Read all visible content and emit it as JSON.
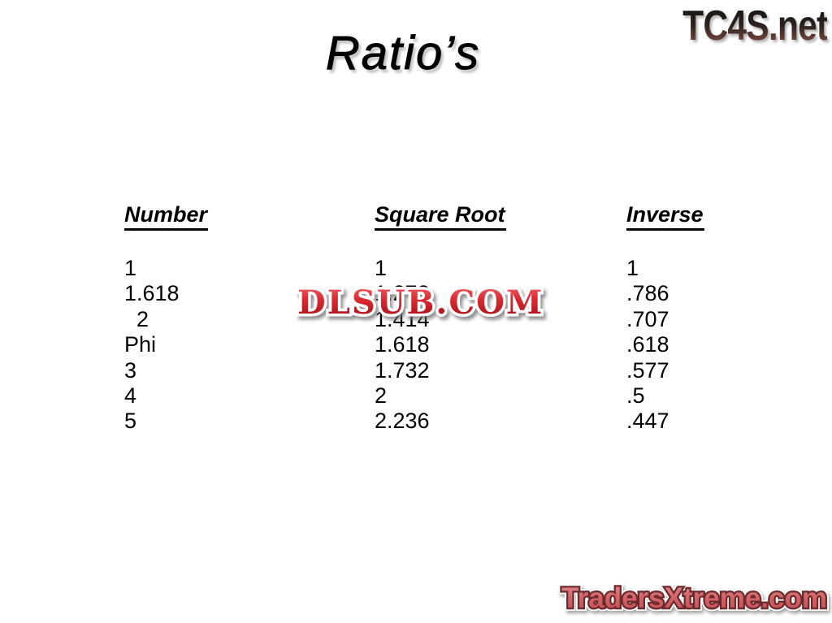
{
  "title": {
    "text": "Ratio’s"
  },
  "watermarks": {
    "tc4s": {
      "text": "TC4S.net"
    },
    "dlsub": {
      "text": "DLSUB.COM"
    },
    "tradersxtreme": {
      "text": "TradersXtreme.com"
    }
  },
  "table": {
    "columns": [
      {
        "header": "Number",
        "values": [
          "1",
          "1.618",
          "  2",
          "Phi",
          "3",
          "4",
          "5"
        ]
      },
      {
        "header": "Square Root",
        "values": [
          "1",
          "1.272",
          "1.414",
          "1.618",
          "1.732",
          "2",
          "2.236"
        ]
      },
      {
        "header": "Inverse",
        "values": [
          "1",
          ".786",
          ".707",
          ".618",
          ".577",
          ".5",
          ".447"
        ]
      }
    ]
  },
  "colors": {
    "background": "#ffffff",
    "text": "#000000",
    "tc4s_gradient_top": "#1a1a1a",
    "tc4s_gradient_bottom": "#7d4a40",
    "dlsub_red": "#cc2027",
    "dlsub_outline": "#ffffff",
    "traders_fill": "#cf585e",
    "traders_outline": "#6b2a2c",
    "traders_outer_outline": "#ffffff"
  }
}
